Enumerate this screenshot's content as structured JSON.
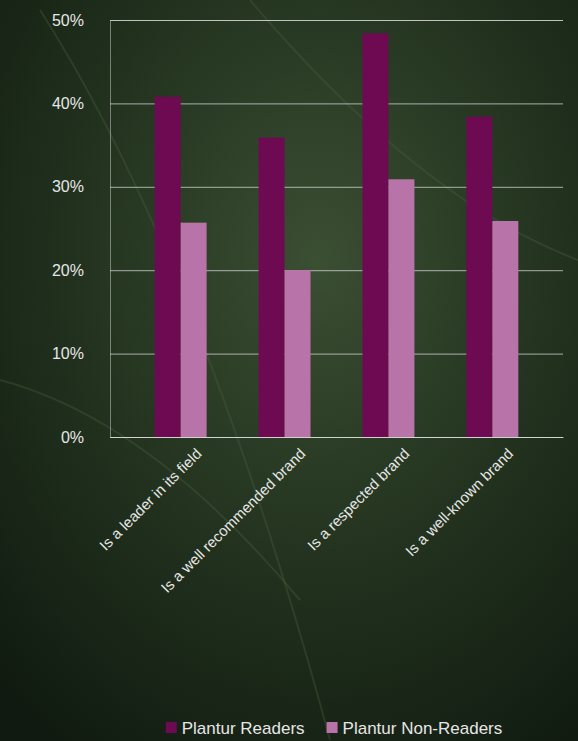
{
  "chart_data": {
    "type": "bar",
    "categories": [
      "Is a leader in its field",
      "Is a well recommended brand",
      "Is a respected brand",
      "Is a well-known brand"
    ],
    "series": [
      {
        "name": "Plantur Readers",
        "color": "#6e0a52",
        "values": [
          40.8,
          35.9,
          48.4,
          38.4
        ]
      },
      {
        "name": "Plantur Non-Readers",
        "color": "#b873a8",
        "values": [
          25.7,
          20.0,
          30.9,
          25.9
        ]
      }
    ],
    "ylim": [
      0,
      50
    ],
    "yticks": [
      {
        "value": 0,
        "label": "0%"
      },
      {
        "value": 10,
        "label": "10%"
      },
      {
        "value": 20,
        "label": "20%"
      },
      {
        "value": 30,
        "label": "30%"
      },
      {
        "value": 40,
        "label": "40%"
      },
      {
        "value": 50,
        "label": "50%"
      }
    ],
    "grid": true,
    "legend": "bottom"
  }
}
